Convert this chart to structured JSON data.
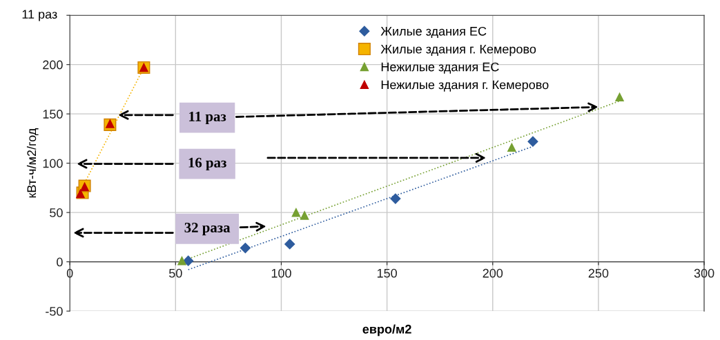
{
  "chart_data": {
    "type": "scatter",
    "xlabel": "евро/м2",
    "ylabel": "кВт-ч/м2/год",
    "xlim": [
      0,
      300
    ],
    "xticks": [
      0,
      50,
      100,
      150,
      200,
      250,
      300
    ],
    "ylim": [
      -50,
      250
    ],
    "yticks": [
      -50,
      0,
      50,
      100,
      150,
      200,
      {
        "value": 250,
        "label": null
      }
    ],
    "grid": true,
    "legend": "top",
    "series": [
      {
        "name": "Жилые здания ЕС",
        "color": "#2e5c9e",
        "marker": "diamond",
        "x": [
          56,
          83,
          104,
          154,
          219
        ],
        "values": [
          1,
          14,
          18,
          64,
          122
        ]
      },
      {
        "name": "Жилые здания г. Кемерово",
        "color": "#f5b400",
        "marker": "square",
        "x": [
          6,
          7,
          19,
          35
        ],
        "values": [
          70,
          77,
          139,
          197
        ]
      },
      {
        "name": "Нежилые здания ЕС",
        "color": "#76a032",
        "marker": "triangle",
        "x": [
          53,
          107,
          111,
          209,
          260
        ],
        "values": [
          1,
          50,
          47,
          116,
          167
        ]
      },
      {
        "name": "Нежилые здания г. Кемерово",
        "color": "#c00000",
        "marker": "triangle",
        "x": [
          5,
          7,
          19,
          35
        ],
        "values": [
          69,
          76,
          140,
          197
        ]
      },
      {
        "type": "line",
        "color": "#2e5c9e",
        "line_style": "dotted",
        "x": [
          56,
          219
        ],
        "values": [
          -8,
          117
        ]
      },
      {
        "type": "line",
        "color": "#76a032",
        "line_style": "dotted",
        "x": [
          56,
          260
        ],
        "values": [
          3,
          163
        ]
      },
      {
        "type": "line",
        "color": "#f5b400",
        "line_style": "dotted",
        "x": [
          7,
          35
        ],
        "values": [
          80,
          197
        ]
      }
    ],
    "annotations": [
      "11 раз",
      {
        "text": "11 раз",
        "x": 250,
        "y": 157
      },
      "16 раз",
      {
        "text": "32 раза",
        "x": 93,
        "y": 36
      }
    ]
  }
}
